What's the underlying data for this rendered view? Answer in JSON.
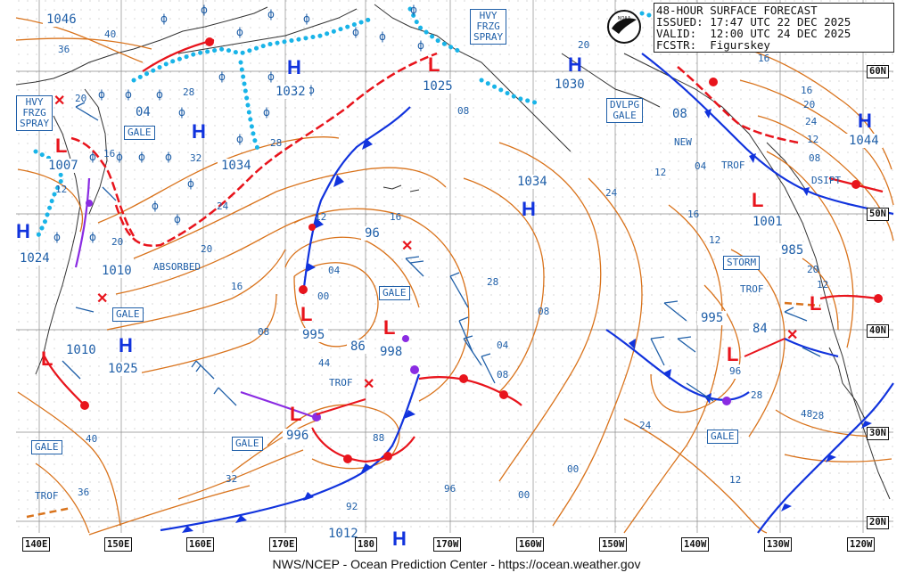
{
  "header": {
    "line1": "48-HOUR SURFACE FORECAST",
    "line2": "ISSUED: 17:47 UTC 22 DEC 2025",
    "line3": "VALID:  12:00 UTC 24 DEC 2025",
    "line4": "FCSTR:  Figurskey"
  },
  "footer": "NWS/NCEP - Ocean Prediction Center - https://ocean.weather.gov",
  "logo": "noaa-logo",
  "longitude_labels": [
    "140E",
    "150E",
    "160E",
    "170E",
    "180",
    "170W",
    "160W",
    "150W",
    "140W",
    "130W",
    "120W"
  ],
  "latitude_labels": [
    "60N",
    "50N",
    "40N",
    "30N",
    "20N"
  ],
  "highs": [
    {
      "pressure": "1046"
    },
    {
      "pressure": "1032"
    },
    {
      "pressure": "1034"
    },
    {
      "pressure": "1025"
    },
    {
      "pressure": "1030"
    },
    {
      "pressure": "1034"
    },
    {
      "pressure": "1024"
    },
    {
      "pressure": "1025"
    },
    {
      "pressure": "1044"
    },
    {
      "pressure": "1012"
    }
  ],
  "lows": [
    {
      "pressure": "1007"
    },
    {
      "pressure": "1010"
    },
    {
      "pressure": "1010"
    },
    {
      "pressure": "96"
    },
    {
      "pressure": "995"
    },
    {
      "pressure": "998"
    },
    {
      "pressure": "996"
    },
    {
      "pressure": "86"
    },
    {
      "pressure": "995"
    },
    {
      "pressure": "96"
    },
    {
      "pressure": "84"
    },
    {
      "pressure": "1001"
    },
    {
      "pressure": "985"
    }
  ],
  "warnings": {
    "hvy_frzg_spray_1": "HVY\nFRZG\nSPRAY",
    "hvy_frzg_spray_2": "HVY\nFRZG\nSPRAY",
    "dvlpg_gale": "DVLPG\nGALE",
    "gale": "GALE",
    "storm": "STORM"
  },
  "annotations": {
    "absorbed": "ABSORBED",
    "trof": "TROF",
    "new": "NEW",
    "dsipt": "DSIPT",
    "zero_four": "04",
    "zero_eight": "08"
  },
  "isobar_labels": [
    "40",
    "36",
    "20",
    "28",
    "32",
    "24",
    "16",
    "28",
    "24",
    "20",
    "16",
    "12",
    "08",
    "04",
    "00",
    "20",
    "16",
    "12",
    "08",
    "04",
    "00",
    "96",
    "92",
    "88",
    "44",
    "40",
    "36",
    "32",
    "28",
    "48",
    "28",
    "20",
    "12",
    "16",
    "20",
    "24",
    "12",
    "08",
    "16",
    "20",
    "12",
    "16",
    "04",
    "08",
    "00",
    "12",
    "24",
    "28",
    "08",
    "12"
  ],
  "colors": {
    "isobar": "#d9731c",
    "cold_front": "#1133dd",
    "warm_front": "#e8141c",
    "occluded": "#8a2be2",
    "ice_edge": "#19b4e8",
    "label_blue": "#1f5fa8",
    "land": "#333333"
  }
}
